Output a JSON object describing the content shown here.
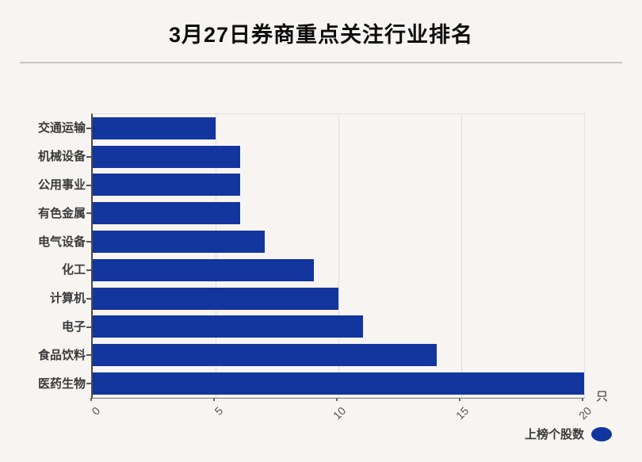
{
  "title": "3月27日券商重点关注行业排名",
  "legend": {
    "label": "上榜个股数"
  },
  "unit_label": "只",
  "colors": {
    "bar": "#12359e",
    "background": "#f7f4f2",
    "gridline": "#dcdcdc",
    "divider": "#c5c5c5"
  },
  "chart_data": {
    "type": "bar",
    "orientation": "horizontal",
    "title": "3月27日券商重点关注行业排名",
    "series_name": "上榜个股数",
    "categories": [
      "交通运输",
      "机械设备",
      "公用事业",
      "有色金属",
      "电气设备",
      "化工",
      "计算机",
      "电子",
      "食品饮料",
      "医药生物"
    ],
    "values": [
      5,
      6,
      6,
      6,
      7,
      9,
      10,
      11,
      14,
      20
    ],
    "xlabel": "只",
    "ylabel": "",
    "xlim": [
      0,
      20
    ],
    "xticks": [
      0,
      5,
      10,
      15,
      20
    ],
    "grid": true,
    "legend_position": "bottom-right"
  }
}
